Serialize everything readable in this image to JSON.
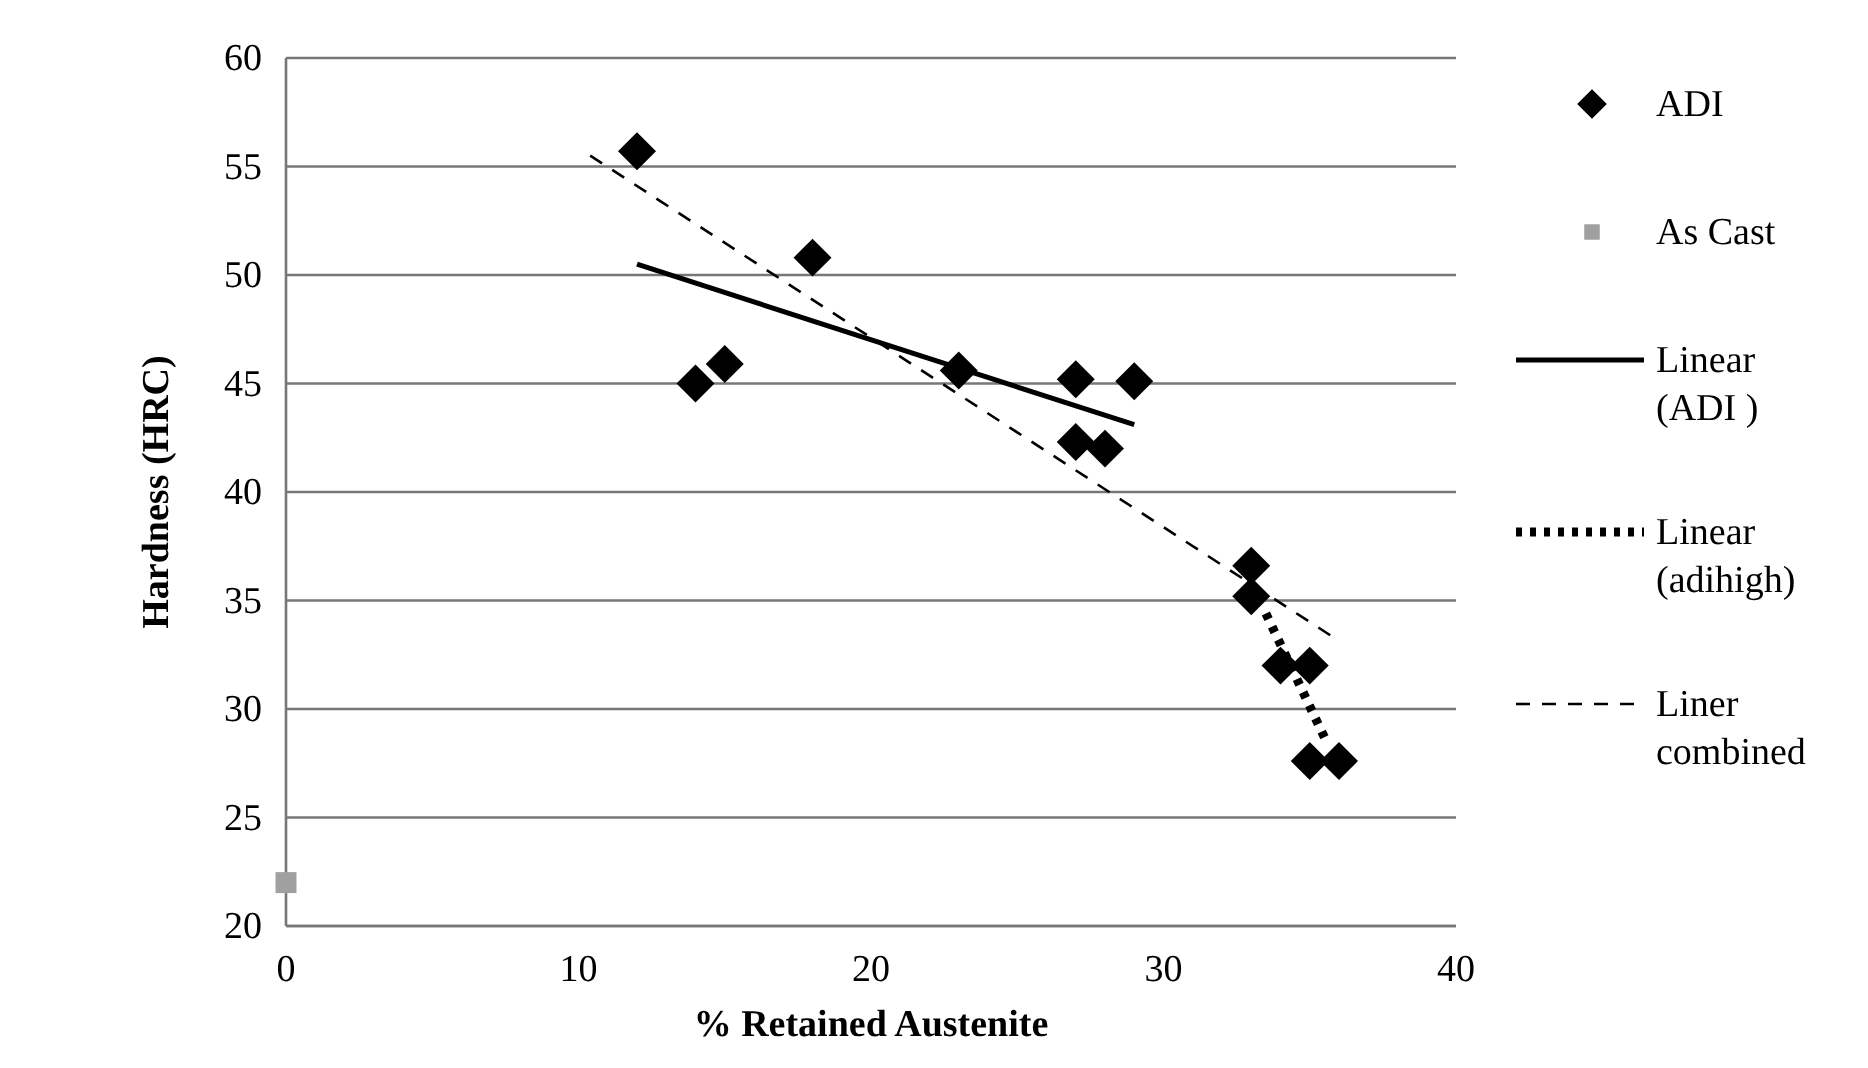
{
  "chart_data": {
    "type": "scatter",
    "xlabel": "% Retained Austenite",
    "ylabel": "Hardness (HRC)",
    "xlim": [
      0,
      40
    ],
    "xticks": [
      0,
      10,
      20,
      30,
      40
    ],
    "ylim": [
      20,
      60
    ],
    "yticks": [
      20,
      25,
      30,
      35,
      40,
      45,
      50,
      55,
      60
    ],
    "grid": "y",
    "legend": "right",
    "series": [
      {
        "name": "ADI",
        "marker": "diamond",
        "color": "#000000",
        "x": [
          12,
          14,
          15,
          18,
          23,
          27,
          27,
          28,
          29,
          33,
          33,
          34,
          35,
          35,
          36
        ],
        "values": [
          55.7,
          45,
          45.9,
          50.8,
          45.6,
          45.2,
          42.3,
          42,
          45.1,
          36.6,
          35.2,
          32,
          32,
          27.6,
          27.6
        ]
      },
      {
        "name": "As Cast",
        "marker": "square",
        "color": "#a0a0a0",
        "x": [
          0
        ],
        "values": [
          22
        ]
      },
      {
        "name": "Linear (ADI )",
        "type": "line",
        "line_style": "solid",
        "color": "#000000",
        "x": [
          12,
          29
        ],
        "values": [
          50.5,
          43.1
        ]
      },
      {
        "name": "Linear (adihigh)",
        "type": "line",
        "line_style": "dotted",
        "color": "#000000",
        "x": [
          33.5,
          35.5
        ],
        "values": [
          34.4,
          28.7
        ]
      },
      {
        "name": "Liner combined",
        "type": "line",
        "line_style": "dashed",
        "color": "#000000",
        "x": [
          10.4,
          35.7
        ],
        "values": [
          55.5,
          33.4
        ]
      }
    ]
  }
}
